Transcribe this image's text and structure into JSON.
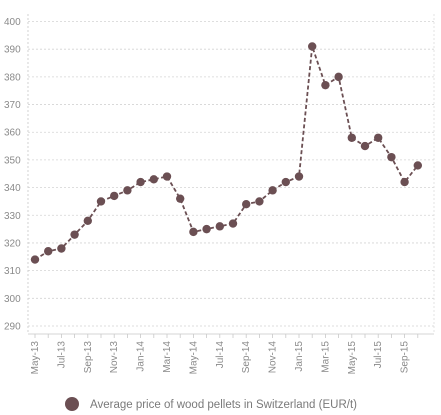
{
  "chart_data": {
    "type": "line",
    "title": "",
    "xlabel": "",
    "ylabel": "",
    "ylim": [
      290,
      405
    ],
    "yticks": [
      290,
      300,
      310,
      320,
      330,
      340,
      350,
      360,
      370,
      380,
      390,
      400
    ],
    "x_tick_labels": [
      "May-13",
      "Jul-13",
      "Sep-13",
      "Nov-13",
      "Jan-14",
      "Mar-14",
      "May-14",
      "Jul-14",
      "Sep-14",
      "Nov-14",
      "Jan-15",
      "Mar-15",
      "May-15",
      "Jul-15",
      "Sep-15"
    ],
    "series": [
      {
        "name": "Average price of wood pellets in Switzerland (EUR/t)",
        "color": "#6b4f53",
        "x": [
          "May-13",
          "Jun-13",
          "Jul-13",
          "Aug-13",
          "Sep-13",
          "Oct-13",
          "Nov-13",
          "Dec-13",
          "Jan-14",
          "Feb-14",
          "Mar-14",
          "Apr-14",
          "May-14",
          "Jun-14",
          "Jul-14",
          "Aug-14",
          "Sep-14",
          "Oct-14",
          "Nov-14",
          "Dec-14",
          "Jan-15",
          "Feb-15",
          "Mar-15",
          "Apr-15",
          "May-15",
          "Jun-15",
          "Jul-15",
          "Aug-15",
          "Sep-15",
          "Oct-15"
        ],
        "values": [
          314,
          317,
          318,
          323,
          328,
          335,
          337,
          339,
          342,
          343,
          344,
          336,
          324,
          325,
          326,
          327,
          334,
          335,
          339,
          342,
          344,
          391,
          377,
          380,
          358,
          355,
          358,
          351,
          342,
          348
        ]
      }
    ],
    "grid": {
      "horizontal": true,
      "vertical": false,
      "style": "dashed"
    },
    "legend": {
      "position": "bottom"
    }
  }
}
